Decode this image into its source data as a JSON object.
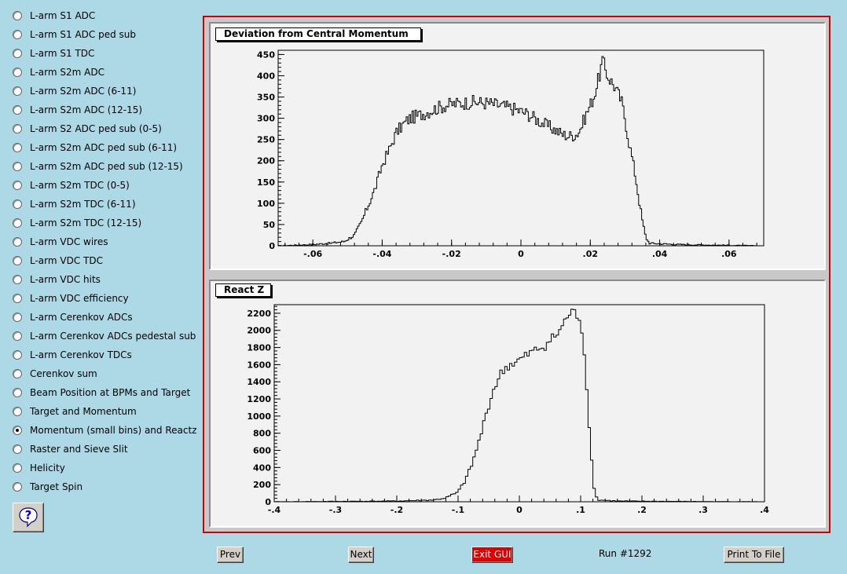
{
  "radio_list": {
    "items": [
      {
        "label": "L-arm S1 ADC",
        "checked": false
      },
      {
        "label": "L-arm S1 ADC ped sub",
        "checked": false
      },
      {
        "label": "L-arm S1 TDC",
        "checked": false
      },
      {
        "label": "L-arm S2m ADC",
        "checked": false
      },
      {
        "label": "L-arm S2m ADC (6-11)",
        "checked": false
      },
      {
        "label": "L-arm S2m ADC (12-15)",
        "checked": false
      },
      {
        "label": "L-arm S2 ADC ped sub (0-5)",
        "checked": false
      },
      {
        "label": "L-arm S2m ADC ped sub (6-11)",
        "checked": false
      },
      {
        "label": "L-arm S2m ADC ped sub (12-15)",
        "checked": false
      },
      {
        "label": "L-arm S2m TDC (0-5)",
        "checked": false
      },
      {
        "label": "L-arm S2m TDC (6-11)",
        "checked": false
      },
      {
        "label": "L-arm S2m TDC (12-15)",
        "checked": false
      },
      {
        "label": "L-arm VDC wires",
        "checked": false
      },
      {
        "label": "L-arm VDC TDC",
        "checked": false
      },
      {
        "label": "L-arm VDC hits",
        "checked": false
      },
      {
        "label": "L-arm VDC efficiency",
        "checked": false
      },
      {
        "label": "L-arm Cerenkov ADCs",
        "checked": false
      },
      {
        "label": "L-arm Cerenkov ADCs pedestal sub",
        "checked": false
      },
      {
        "label": "L-arm Cerenkov TDCs",
        "checked": false
      },
      {
        "label": "Cerenkov sum",
        "checked": false
      },
      {
        "label": "Beam Position at BPMs and Target",
        "checked": false
      },
      {
        "label": "Target and Momentum",
        "checked": false
      },
      {
        "label": "Momentum (small bins) and Reactz",
        "checked": true
      },
      {
        "label": "Raster and Sieve Slit",
        "checked": false
      },
      {
        "label": "Helicity",
        "checked": false
      },
      {
        "label": "Target Spin",
        "checked": false
      }
    ]
  },
  "help_icon": "question-mark-icon",
  "buttons": {
    "prev": "Prev",
    "next": "Next",
    "exit": "Exit GUI",
    "print": "Print To File"
  },
  "run_label": "Run #1292",
  "colors": {
    "background": "#add8e6",
    "frame_border": "#d10000",
    "exit_button": "#e00000"
  },
  "chart_data": [
    {
      "type": "histogram",
      "title": "Deviation from Central Momentum",
      "xlim": [
        -0.07,
        0.07
      ],
      "ylim": [
        0,
        460
      ],
      "x_ticks": [
        -0.06,
        -0.04,
        -0.02,
        0,
        0.02,
        0.04,
        0.06
      ],
      "y_ticks": [
        0,
        50,
        100,
        150,
        200,
        250,
        300,
        350,
        400,
        450
      ],
      "shape_points": [
        [
          -0.07,
          0
        ],
        [
          -0.06,
          3
        ],
        [
          -0.055,
          6
        ],
        [
          -0.051,
          10
        ],
        [
          -0.048,
          25
        ],
        [
          -0.046,
          55
        ],
        [
          -0.044,
          95
        ],
        [
          -0.042,
          135
        ],
        [
          -0.04,
          190
        ],
        [
          -0.038,
          225
        ],
        [
          -0.036,
          265
        ],
        [
          -0.034,
          285
        ],
        [
          -0.032,
          300
        ],
        [
          -0.03,
          305
        ],
        [
          -0.026,
          318
        ],
        [
          -0.022,
          330
        ],
        [
          -0.018,
          335
        ],
        [
          -0.014,
          338
        ],
        [
          -0.01,
          336
        ],
        [
          -0.006,
          330
        ],
        [
          -0.002,
          322
        ],
        [
          0.002,
          310
        ],
        [
          0.006,
          290
        ],
        [
          0.01,
          272
        ],
        [
          0.012,
          262
        ],
        [
          0.014,
          258
        ],
        [
          0.016,
          262
        ],
        [
          0.017,
          272
        ],
        [
          0.019,
          312
        ],
        [
          0.021,
          350
        ],
        [
          0.0225,
          395
        ],
        [
          0.0235,
          435
        ],
        [
          0.025,
          400
        ],
        [
          0.027,
          375
        ],
        [
          0.029,
          340
        ],
        [
          0.03,
          300
        ],
        [
          0.031,
          250
        ],
        [
          0.032,
          210
        ],
        [
          0.033,
          165
        ],
        [
          0.034,
          110
        ],
        [
          0.035,
          60
        ],
        [
          0.036,
          20
        ],
        [
          0.037,
          6
        ],
        [
          0.045,
          3
        ],
        [
          0.068,
          0
        ]
      ],
      "noise_amplitude": 18
    },
    {
      "type": "histogram",
      "title": "React Z",
      "xlim": [
        -0.4,
        0.4
      ],
      "ylim": [
        0,
        2300
      ],
      "x_ticks": [
        -0.4,
        -0.3,
        -0.2,
        -0.1,
        0,
        0.1,
        0.2,
        0.3,
        0.4
      ],
      "y_ticks": [
        0,
        200,
        400,
        600,
        800,
        1000,
        1200,
        1400,
        1600,
        1800,
        2000,
        2200
      ],
      "shape_points": [
        [
          -0.4,
          0
        ],
        [
          -0.2,
          8
        ],
        [
          -0.14,
          20
        ],
        [
          -0.12,
          45
        ],
        [
          -0.1,
          110
        ],
        [
          -0.09,
          230
        ],
        [
          -0.08,
          380
        ],
        [
          -0.07,
          600
        ],
        [
          -0.06,
          860
        ],
        [
          -0.05,
          1130
        ],
        [
          -0.04,
          1350
        ],
        [
          -0.03,
          1490
        ],
        [
          -0.02,
          1580
        ],
        [
          0.0,
          1650
        ],
        [
          0.02,
          1740
        ],
        [
          0.04,
          1820
        ],
        [
          0.06,
          1940
        ],
        [
          0.07,
          2040
        ],
        [
          0.08,
          2190
        ],
        [
          0.09,
          2200
        ],
        [
          0.1,
          2150
        ],
        [
          0.105,
          1800
        ],
        [
          0.11,
          1350
        ],
        [
          0.115,
          800
        ],
        [
          0.12,
          250
        ],
        [
          0.125,
          60
        ],
        [
          0.13,
          20
        ],
        [
          0.16,
          8
        ],
        [
          0.3,
          2
        ],
        [
          0.4,
          0
        ]
      ],
      "noise_amplitude": 30
    }
  ]
}
